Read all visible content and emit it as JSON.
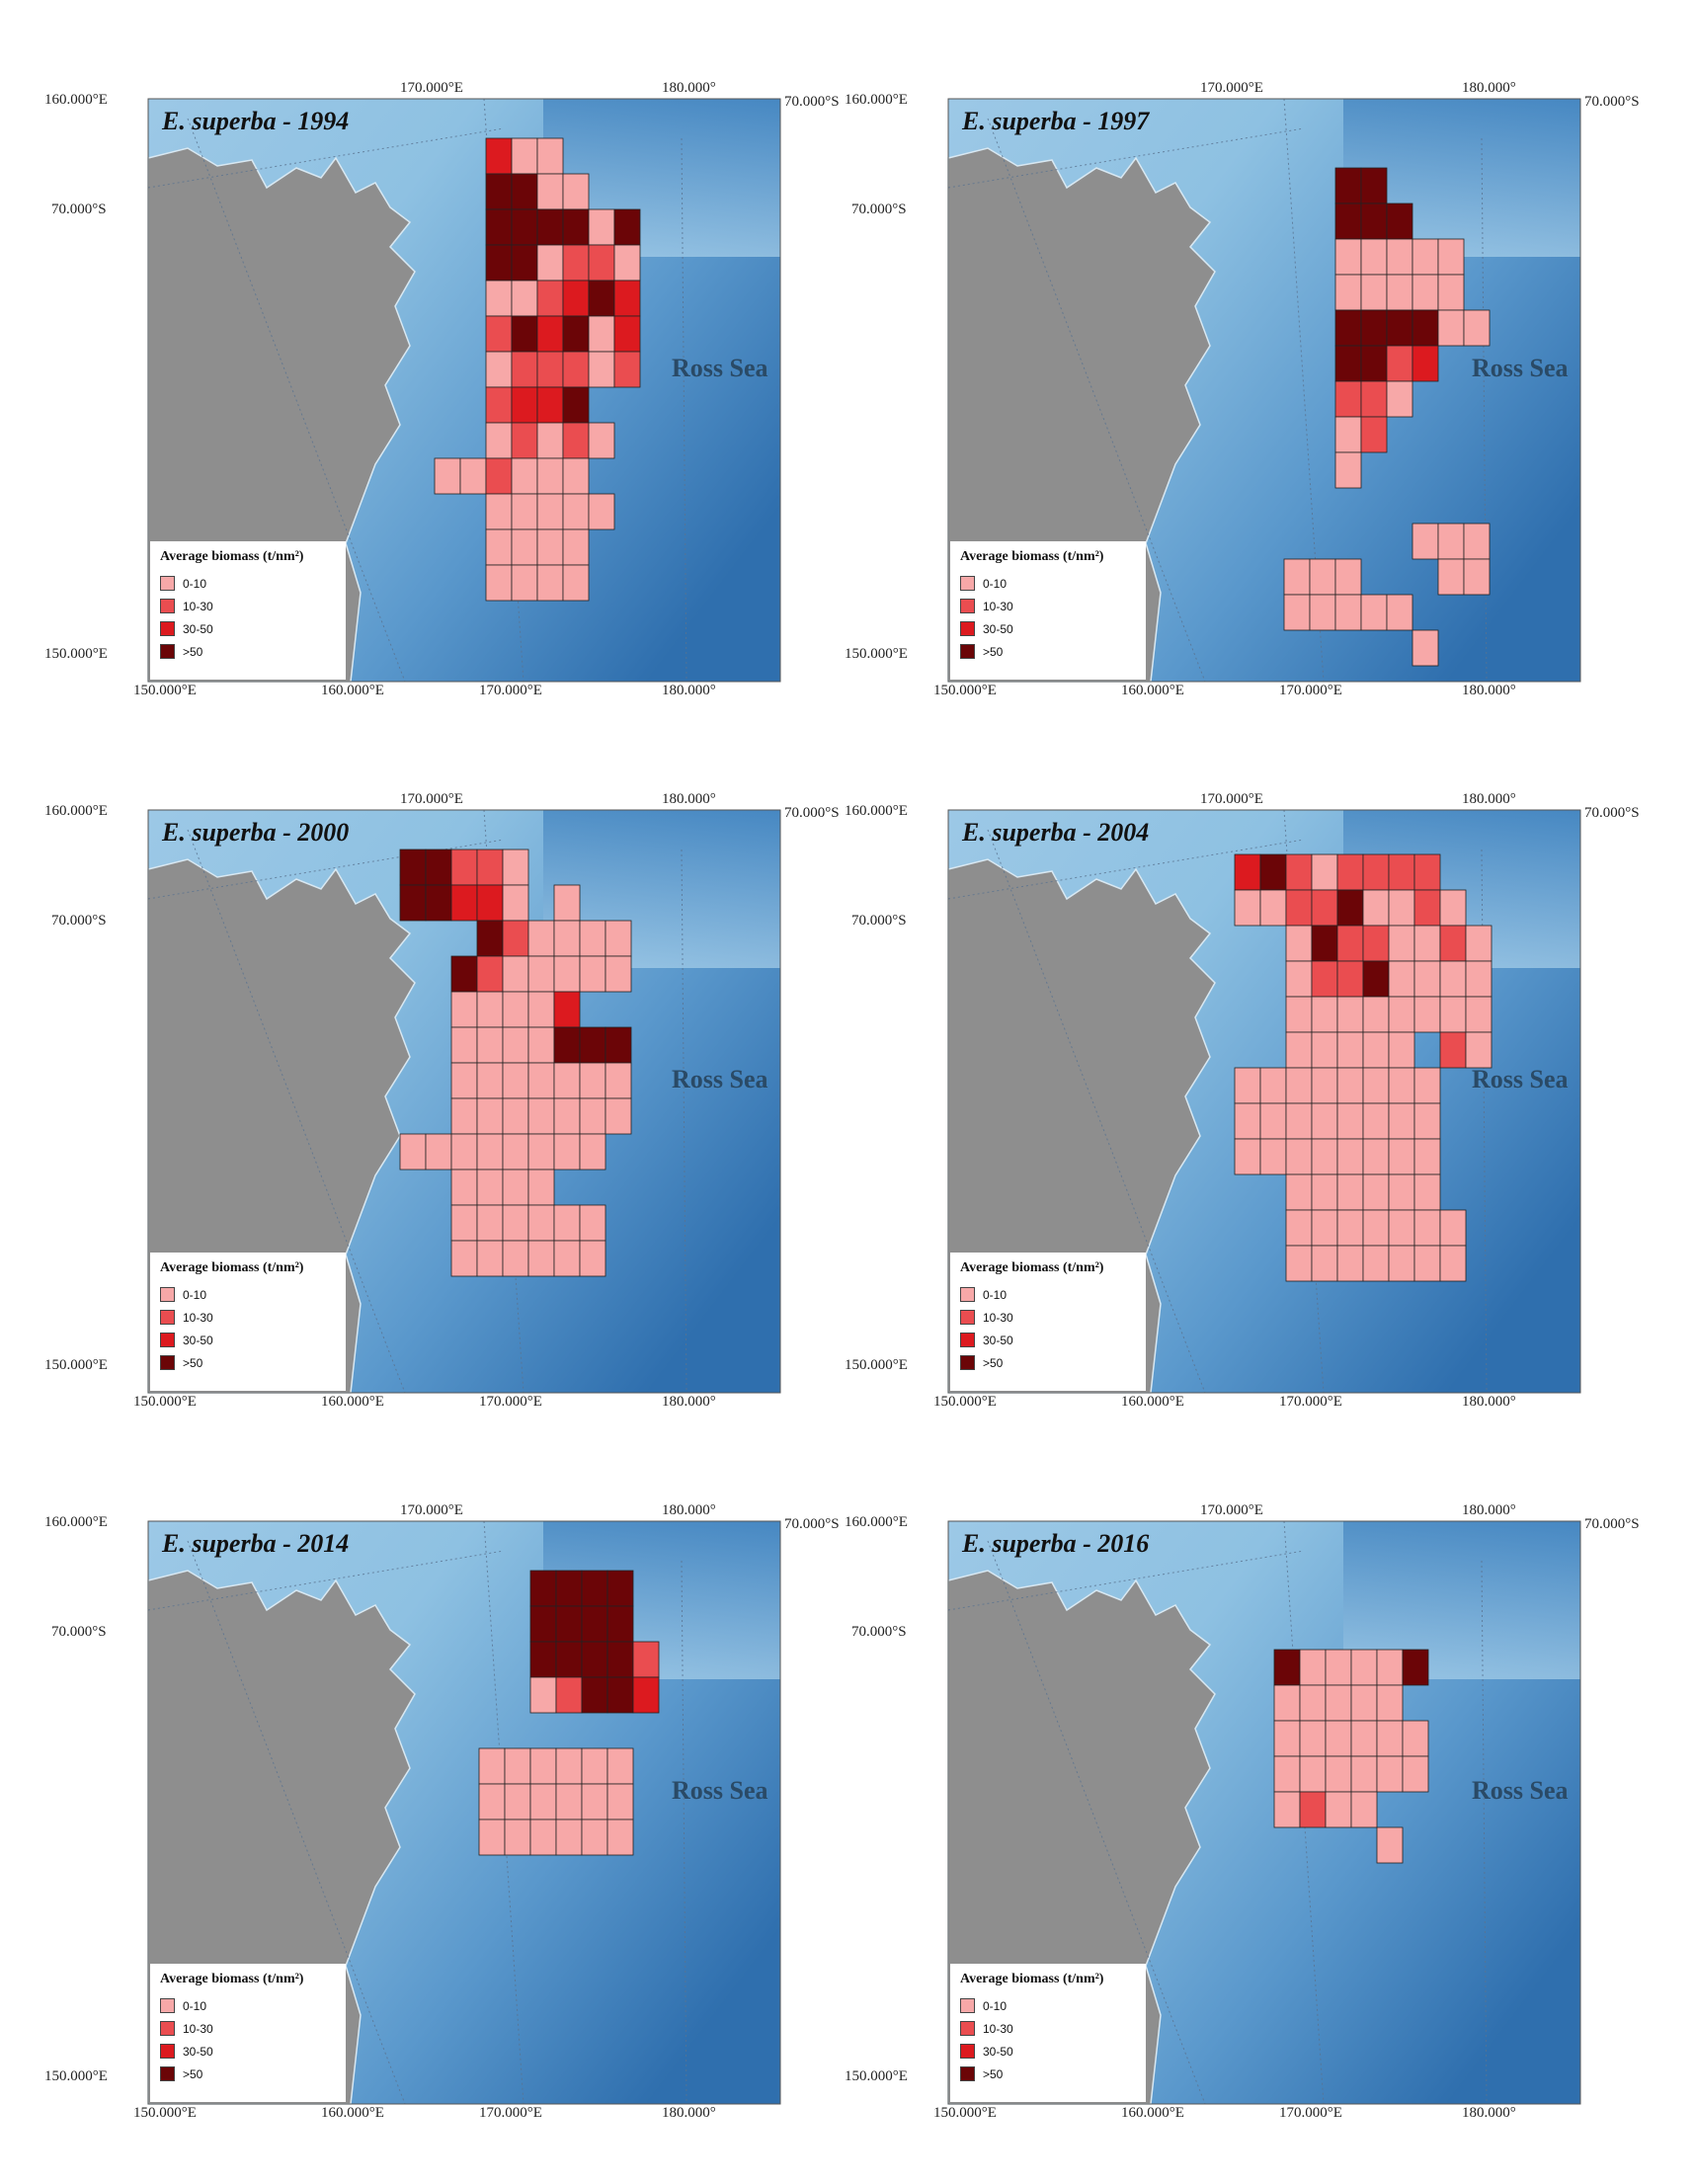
{
  "sea_label": "Ross Sea",
  "legend": {
    "title": "Average biomass (t/nm²)",
    "items": [
      {
        "label": "0-10",
        "color": "#f7a8a8"
      },
      {
        "label": "10-30",
        "color": "#ea4d50"
      },
      {
        "label": "30-50",
        "color": "#dc1a1f"
      },
      {
        "label": ">50",
        "color": "#6b0507"
      }
    ]
  },
  "axis_ticks": {
    "left_top": "160.000°E",
    "left_mid": "70.000°S",
    "left_bottom": "150.000°E",
    "right_top": "70.000°S",
    "top_a": "170.000°E",
    "top_b": "180.000°",
    "bottom_a": "150.000°E",
    "bottom_b": "160.000°E",
    "bottom_c": "170.000°E",
    "bottom_d": "180.000°"
  },
  "panels": [
    {
      "title": "E. superba - 1994",
      "year": 1994
    },
    {
      "title": "E. superba - 1997",
      "year": 1997
    },
    {
      "title": "E. superba - 2000",
      "year": 2000
    },
    {
      "title": "E. superba - 2004",
      "year": 2004
    },
    {
      "title": "E. superba - 2014",
      "year": 2014
    },
    {
      "title": "E. superba - 2016",
      "year": 2016
    }
  ],
  "grids": [
    [
      "..311...",
      "..4411..",
      "..444414",
      "..441221",
      "..112343",
      "..243413",
      "..122212",
      "..2334..",
      "..12121.",
      "112111..",
      "..11111.",
      "..1111..",
      "..1111.."
    ],
    [
      "..44...",
      "..444..",
      "..11111",
      "..11111",
      "..444411",
      "..4423.",
      "..221..",
      "..12...",
      "..1....",
      ".......",
      ".....111",
      "111...11",
      "11111...",
      ".....1.."
    ],
    [
      "44221.....",
      "44331.1.....",
      "...421111.",
      "..4211111.",
      "..11113...",
      "..1111444.",
      "..1111111.",
      "..1111111.",
      "11111111..",
      "..1111....",
      "..111111..",
      "..111111.."
    ],
    [
      "34212222..",
      "112241121.",
      "..14221121",
      "..12241111",
      "..11111111",
      "..11111.21",
      "11111111..",
      "11111111..",
      "11111111..",
      "..111111..",
      "..1111111.",
      "..1111111."
    ],
    [
      "..4444....",
      "..4444....",
      "..44442...",
      "..12443...",
      ".........",
      "111111....",
      "111111....",
      "111111...."
    ],
    [
      "411114",
      "11111",
      "111111",
      "111111",
      "1211..",
      "....1."
    ]
  ]
}
